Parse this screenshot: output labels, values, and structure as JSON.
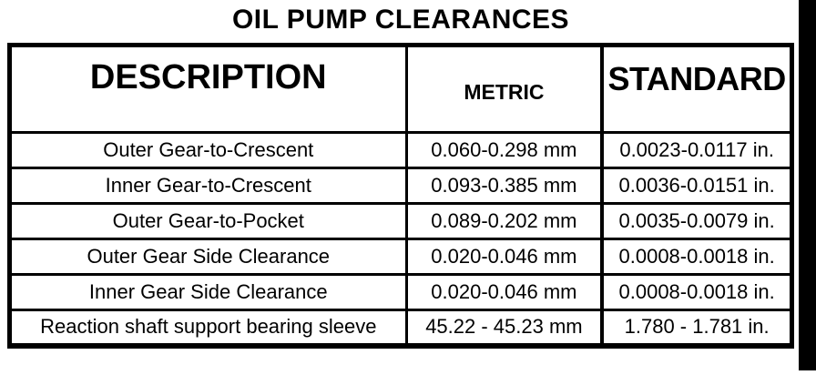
{
  "title": "OIL PUMP CLEARANCES",
  "colors": {
    "text": "#000000",
    "background": "#ffffff",
    "border": "#000000",
    "scan_edge_bar": "#000000"
  },
  "table": {
    "columns": [
      "DESCRIPTION",
      "METRIC",
      "STANDARD"
    ],
    "rows": [
      {
        "description": "Outer Gear-to-Crescent",
        "metric": "0.060-0.298 mm",
        "standard": "0.0023-0.0117 in."
      },
      {
        "description": "Inner Gear-to-Crescent",
        "metric": "0.093-0.385 mm",
        "standard": "0.0036-0.0151 in."
      },
      {
        "description": "Outer Gear-to-Pocket",
        "metric": "0.089-0.202 mm",
        "standard": "0.0035-0.0079 in."
      },
      {
        "description": "Outer Gear Side Clearance",
        "metric": "0.020-0.046 mm",
        "standard": "0.0008-0.0018 in."
      },
      {
        "description": "Inner Gear Side Clearance",
        "metric": "0.020-0.046 mm",
        "standard": "0.0008-0.0018 in."
      },
      {
        "description": "Reaction shaft support bearing sleeve",
        "metric": "45.22 - 45.23 mm",
        "standard": "1.780 - 1.781 in."
      }
    ]
  }
}
